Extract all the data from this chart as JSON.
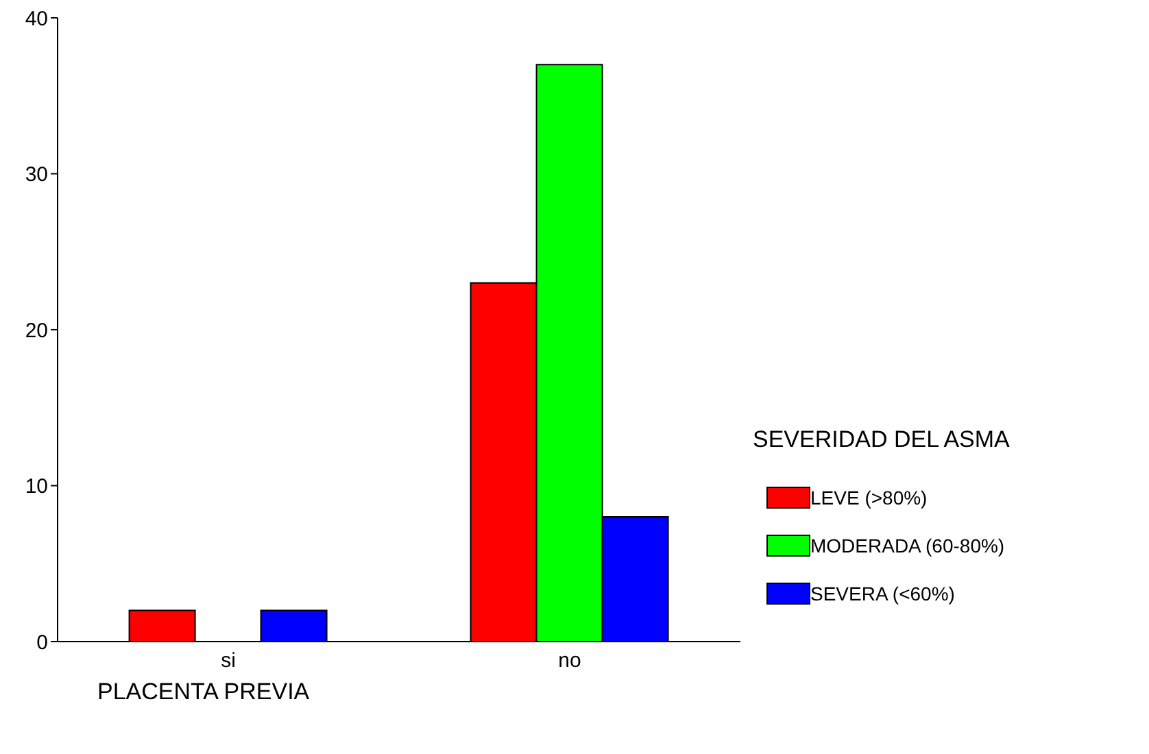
{
  "chart_data": {
    "type": "bar",
    "xlabel": "PLACENTA PREVIA",
    "legend_title": "SEVERIDAD DEL ASMA",
    "categories": [
      "si",
      "no"
    ],
    "series": [
      {
        "name": "LEVE (>80%)",
        "color": "#ff0000",
        "values": [
          2,
          23
        ]
      },
      {
        "name": "MODERADA (60-80%)",
        "color": "#00ff00",
        "values": [
          0,
          37
        ]
      },
      {
        "name": "SEVERA (<60%)",
        "color": "#0000ff",
        "values": [
          2,
          8
        ]
      }
    ],
    "ylim": [
      0,
      40
    ],
    "yticks": [
      0,
      10,
      20,
      30,
      40
    ],
    "grid": false,
    "legend": "right"
  }
}
